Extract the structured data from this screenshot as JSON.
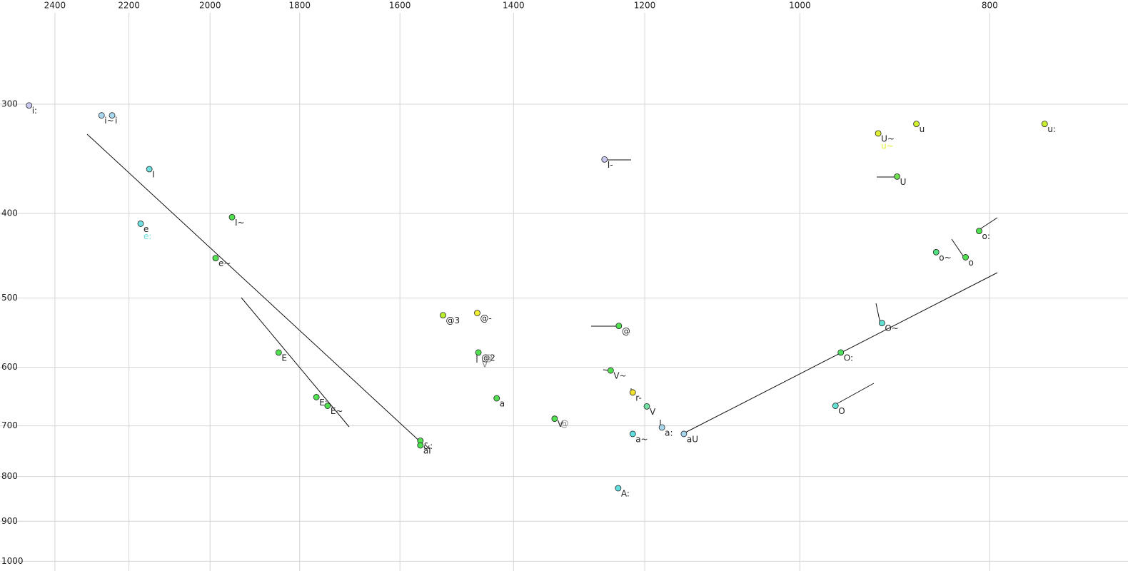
{
  "chart_data": {
    "type": "scatter",
    "xscale": "log",
    "yscale": "log",
    "xlim": [
      2560,
      680
    ],
    "ylim": [
      228,
      1026
    ],
    "xticks": [
      2400,
      2200,
      2000,
      1800,
      1600,
      1400,
      1200,
      1000,
      800
    ],
    "yticks": [
      300,
      400,
      500,
      600,
      700,
      800,
      900,
      1000
    ],
    "grid": true,
    "labels": [
      "i:",
      "i~",
      "i",
      "I",
      "e",
      "e:",
      "I~",
      "e~",
      "E",
      "E:",
      "E~",
      "&:",
      "aI",
      "@3",
      "@-",
      "@2",
      "@",
      "V",
      "a",
      "V",
      "@",
      "I-",
      "@",
      "V~",
      "r-",
      "V",
      "a~",
      "a:",
      "A:",
      "aU",
      "U~",
      "u~",
      "u",
      "u:",
      "U",
      "o:",
      "o~",
      "o",
      "O~",
      "O:",
      "O"
    ],
    "x": [
      2474,
      2272,
      2244,
      2148,
      2170,
      2170,
      1949,
      1987,
      1845,
      1765,
      1742,
      1562,
      1562,
      1521,
      1461,
      1459,
      1454,
      1458,
      1428,
      1334,
      1330,
      1258,
      1237,
      1249,
      1217,
      1197,
      1217,
      1176,
      1238,
      1146,
      912,
      912,
      872,
      750,
      892,
      810,
      852,
      823,
      908,
      953,
      959
    ],
    "y": [
      301,
      309,
      309,
      356,
      411,
      411,
      404,
      450,
      577,
      649,
      664,
      728,
      737,
      523,
      520,
      577,
      577,
      587,
      651,
      687,
      686,
      347,
      538,
      605,
      641,
      665,
      715,
      703,
      825,
      715,
      324,
      324,
      316,
      316,
      363,
      419,
      443,
      449,
      534,
      577,
      664
    ],
    "colors": [
      "#c8c8f0",
      "#a8d8f0",
      "#a8d8f0",
      "#70e0e0",
      "#70e0e0",
      "#70e0e0",
      "#50e050",
      "#50e050",
      "#50e050",
      "#50e050",
      "#50e050",
      "#50e050",
      "#50e050",
      "#b8f030",
      "#f0f030",
      "#50e050",
      "#888888",
      "#888888",
      "#50e050",
      "#50e050",
      "#888888",
      "#c8c8f0",
      "#50e050",
      "#50e050",
      "#f0e030",
      "#70e0a0",
      "#60e0e0",
      "#a8d8f0",
      "#60e0e0",
      "#a8d8f0",
      "#e0f030",
      "#e0f030",
      "#d0f030",
      "#c8f030",
      "#70e050",
      "#50e050",
      "#50e080",
      "#50e050",
      "#60e0d0",
      "#50e060",
      "#60e0d0"
    ],
    "markers": [
      true,
      true,
      true,
      true,
      true,
      false,
      true,
      true,
      true,
      true,
      true,
      true,
      true,
      true,
      true,
      true,
      false,
      false,
      true,
      true,
      false,
      true,
      true,
      true,
      true,
      true,
      true,
      true,
      true,
      true,
      true,
      false,
      true,
      true,
      true,
      true,
      true,
      true,
      true,
      true,
      true
    ]
  }
}
